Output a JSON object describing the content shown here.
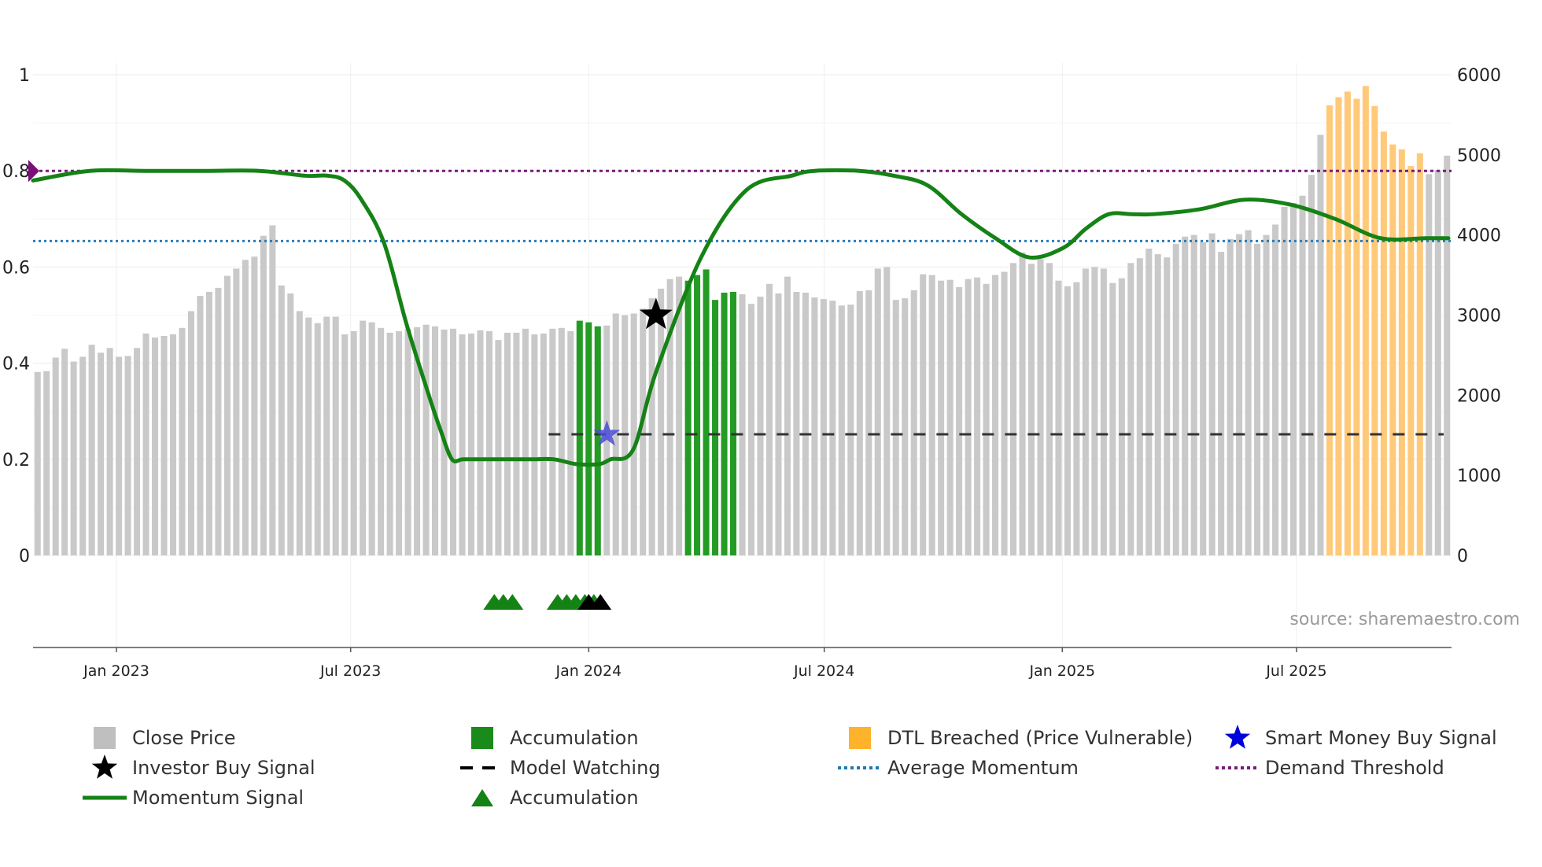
{
  "chart_data": {
    "type": "bar",
    "title": "",
    "source_note": "source: sharemaestro.com",
    "x_ticks": [
      "Jan 2023",
      "Jul 2023",
      "Jan 2024",
      "Jul 2024",
      "Jan 2025",
      "Jul 2025"
    ],
    "y_left": {
      "range": [
        0,
        1
      ],
      "ticks": [
        "0",
        "0.2",
        "0.4",
        "0.6",
        "0.8",
        "1"
      ]
    },
    "y_right": {
      "range": [
        0,
        6000
      ],
      "ticks": [
        "0",
        "1000",
        "2000",
        "3000",
        "4000",
        "5000",
        "6000"
      ]
    },
    "close_price": [
      2290,
      2300,
      2470,
      2580,
      2420,
      2480,
      2630,
      2530,
      2590,
      2480,
      2490,
      2590,
      2770,
      2720,
      2740,
      2760,
      2840,
      3050,
      3240,
      3290,
      3340,
      3490,
      3580,
      3690,
      3730,
      3990,
      4120,
      3370,
      3270,
      3050,
      2970,
      2900,
      2980,
      2980,
      2760,
      2800,
      2930,
      2910,
      2840,
      2780,
      2800,
      2830,
      2850,
      2880,
      2860,
      2820,
      2830,
      2760,
      2770,
      2810,
      2800,
      2690,
      2780,
      2780,
      2830,
      2760,
      2770,
      2830,
      2840,
      2800,
      2930,
      2910,
      2860,
      2870,
      3020,
      3000,
      3020,
      3080,
      3210,
      3330,
      3450,
      3480,
      3430,
      3500,
      3570,
      3190,
      3280,
      3290,
      3260,
      3140,
      3230,
      3390,
      3270,
      3480,
      3290,
      3280,
      3220,
      3200,
      3180,
      3120,
      3130,
      3300,
      3310,
      3580,
      3600,
      3190,
      3210,
      3310,
      3510,
      3500,
      3430,
      3440,
      3350,
      3450,
      3470,
      3390,
      3500,
      3540,
      3650,
      3780,
      3640,
      3700,
      3650,
      3430,
      3360,
      3410,
      3580,
      3600,
      3580,
      3400,
      3460,
      3650,
      3710,
      3830,
      3760,
      3720,
      3890,
      3980,
      4000,
      3910,
      4020,
      3790,
      3950,
      4010,
      4060,
      3890,
      4000,
      4130,
      4350,
      4400,
      4490,
      4750,
      5250,
      5620,
      5720,
      5790,
      5700,
      5860,
      5610,
      5290,
      5130,
      5070,
      4860,
      5020,
      4760,
      4810,
      4990
    ],
    "accumulation_bars": [
      60,
      61,
      62,
      72,
      73,
      74,
      75,
      76,
      77
    ],
    "dtl_breached_bars": [
      143,
      144,
      145,
      146,
      147,
      148,
      149,
      150,
      151,
      152,
      153
    ],
    "series": [
      {
        "name": "Momentum Signal",
        "x": [
          0,
          10,
          20,
          30,
          40,
          48,
          52,
          55,
          58,
          62,
          66,
          70,
          72,
          74,
          76,
          80,
          84,
          88,
          92,
          96,
          100,
          102,
          106,
          110,
          118,
          126,
          134,
          138,
          146,
          152,
          158,
          164,
          170,
          176,
          182,
          186,
          190,
          194,
          198,
          206,
          214,
          222,
          230,
          238,
          246,
          250
        ],
        "values": [
          0.78,
          0.8,
          0.8,
          0.8,
          0.8,
          0.79,
          0.79,
          0.78,
          0.74,
          0.65,
          0.48,
          0.33,
          0.26,
          0.2,
          0.2,
          0.2,
          0.2,
          0.2,
          0.2,
          0.19,
          0.19,
          0.2,
          0.22,
          0.38,
          0.62,
          0.76,
          0.79,
          0.8,
          0.8,
          0.79,
          0.77,
          0.71,
          0.66,
          0.62,
          0.64,
          0.68,
          0.71,
          0.71,
          0.71,
          0.72,
          0.74,
          0.73,
          0.7,
          0.66,
          0.66,
          0.66
        ]
      },
      {
        "name": "Average Momentum",
        "value": 0.654
      },
      {
        "name": "Demand Threshold",
        "value": 0.8
      },
      {
        "name": "Model Watching",
        "value": 0.252,
        "from_date": "2023-12-01"
      }
    ],
    "markers": {
      "investor_buy_signal": {
        "date": "2024-02-22",
        "momentum": 0.5
      },
      "smart_money_buy_signal": {
        "date": "2024-01-15",
        "momentum": 0.252
      },
      "demand_threshold_start": {
        "value": 0.8
      },
      "accumulation_triangles_green": [
        "2023-10-20",
        "2023-10-27",
        "2023-11-03",
        "2023-12-08",
        "2023-12-15",
        "2023-12-22",
        "2023-12-29",
        "2024-01-05"
      ],
      "accumulation_triangles_black": [
        "2024-01-01",
        "2024-01-10"
      ]
    }
  },
  "legend": [
    {
      "label": "Close Price",
      "symbol": "square",
      "color": "#bfbfbf"
    },
    {
      "label": "Accumulation",
      "symbol": "square",
      "color": "#1a8a1a"
    },
    {
      "label": "DTL Breached (Price Vulnerable)",
      "symbol": "square",
      "color": "#ffb22b"
    },
    {
      "label": "Smart Money Buy Signal",
      "symbol": "star",
      "color": "#0000dd"
    },
    {
      "label": "Investor Buy Signal",
      "symbol": "star",
      "color": "#000000"
    },
    {
      "label": "Model Watching",
      "symbol": "dash",
      "color": "#000000"
    },
    {
      "label": "Average Momentum",
      "symbol": "dotted",
      "color": "#1f77b4"
    },
    {
      "label": "Demand Threshold",
      "symbol": "dotted",
      "color": "#7a1a7a"
    },
    {
      "label": "Momentum Signal",
      "symbol": "line",
      "color": "#158215"
    },
    {
      "label": "Accumulation",
      "symbol": "triangle",
      "color": "#158215"
    }
  ],
  "colors": {
    "close_price": "#c9c9c9",
    "accumulation": "#249b24",
    "dtl": "#ffc97a",
    "momentum": "#158215",
    "average": "#2b7bb9",
    "threshold": "#7a1a7a",
    "watching": "#333333",
    "smart_money": "#4a4ad6"
  }
}
